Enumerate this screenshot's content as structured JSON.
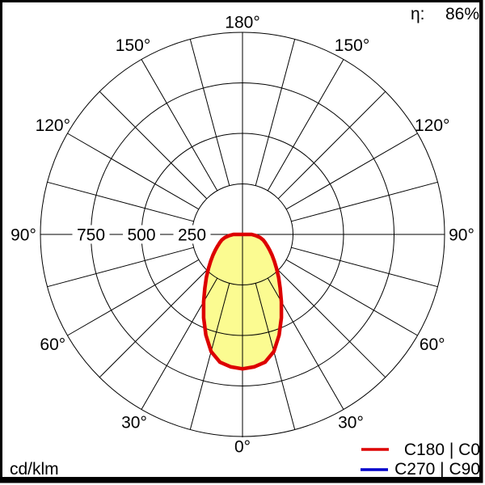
{
  "chart_data": {
    "type": "polar_photometric",
    "description": "Luminaire polar light distribution curve (intensity in cd/klm vs gamma angle)",
    "unit_label": "cd/klm",
    "efficiency_label": "η:",
    "efficiency_value": "86%",
    "r_axis": {
      "max": 1000,
      "grid_step": 250,
      "ticks": [
        {
          "value": 750,
          "label": "750"
        },
        {
          "value": 500,
          "label": "500"
        },
        {
          "value": 250,
          "label": "250"
        }
      ]
    },
    "angle_grid_step_deg": 15,
    "angle_labels": [
      {
        "deg": 180,
        "label": "180°"
      },
      {
        "deg": 150,
        "label": "150°"
      },
      {
        "deg": 120,
        "label": "120°"
      },
      {
        "deg": 90,
        "label": "90°"
      },
      {
        "deg": 60,
        "label": "60°"
      },
      {
        "deg": 30,
        "label": "30°"
      },
      {
        "deg": 0,
        "label": "0°"
      }
    ],
    "series": [
      {
        "name": "C180 | C0",
        "color": "#dd0000",
        "fill_color": "#fbfb91",
        "symmetric": true,
        "angles_deg": [
          0,
          5,
          10,
          15,
          20,
          25,
          30,
          35,
          40,
          45,
          50,
          55,
          60,
          65,
          70,
          75,
          80,
          85,
          90
        ],
        "values_cd_klm": [
          665,
          658,
          642,
          600,
          530,
          455,
          385,
          325,
          278,
          238,
          205,
          178,
          155,
          136,
          120,
          106,
          88,
          66,
          45
        ]
      },
      {
        "name": "C270 | C90",
        "color": "#0000cc",
        "fill_color": "none",
        "symmetric": true,
        "angles_deg": [
          0,
          5,
          10,
          15,
          20,
          25,
          30,
          35,
          40,
          45,
          50,
          55,
          60,
          65,
          70,
          75,
          80,
          85,
          90
        ],
        "values_cd_klm": [
          665,
          658,
          642,
          600,
          530,
          455,
          385,
          325,
          278,
          238,
          205,
          178,
          155,
          136,
          120,
          106,
          88,
          66,
          45
        ]
      }
    ],
    "legend": {
      "position": "bottom-right"
    }
  }
}
